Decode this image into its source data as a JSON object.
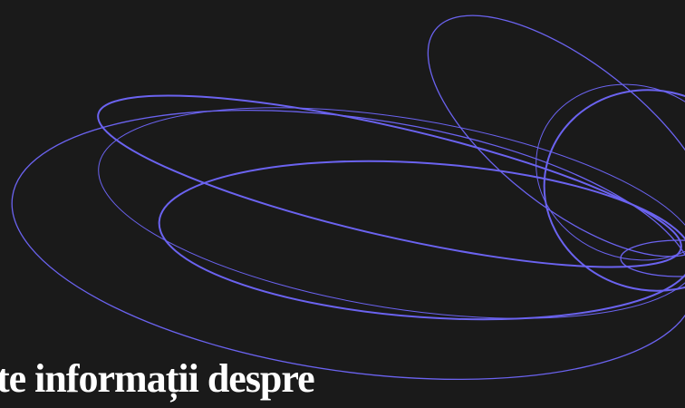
{
  "headline": "te informații despre"
}
